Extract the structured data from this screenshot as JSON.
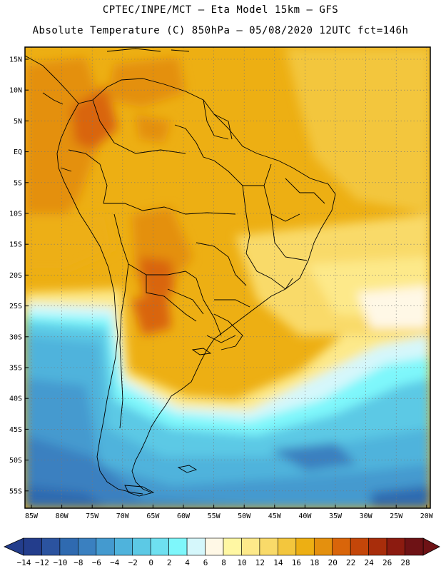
{
  "header": {
    "line1": "CPTEC/INPE/MCT –  Eta Model 15km – GFS",
    "line2": "Absolute Temperature (C) 850hPa – 05/08/2020 12UTC fct=146h"
  },
  "map": {
    "lat_labels": [
      "15N",
      "10N",
      "5N",
      "EQ",
      "5S",
      "10S",
      "15S",
      "20S",
      "25S",
      "30S",
      "35S",
      "40S",
      "45S",
      "50S",
      "55S"
    ],
    "lon_labels": [
      "85W",
      "80W",
      "75W",
      "70W",
      "65W",
      "60W",
      "55W",
      "50W",
      "45W",
      "40W",
      "35W",
      "30W",
      "25W",
      "20W"
    ]
  },
  "colorbar": {
    "labels": [
      "-14",
      "-12",
      "-10",
      "-8",
      "-6",
      "-4",
      "-2",
      "0",
      "2",
      "4",
      "6",
      "8",
      "10",
      "12",
      "14",
      "16",
      "18",
      "20",
      "22",
      "24",
      "26",
      "28"
    ],
    "colors": [
      "#233d8c",
      "#2b539f",
      "#2f6ab0",
      "#3a80c0",
      "#449acf",
      "#4fb3dc",
      "#5cc9e5",
      "#6ee0f0",
      "#7ef7fb",
      "#d5f7fb",
      "#fff8e6",
      "#fff7a3",
      "#fde98a",
      "#f9da69",
      "#f3c63d",
      "#edaf13",
      "#e4900e",
      "#d9650a",
      "#c44609",
      "#a82d0b",
      "#8c1b10",
      "#6e1215"
    ]
  }
}
